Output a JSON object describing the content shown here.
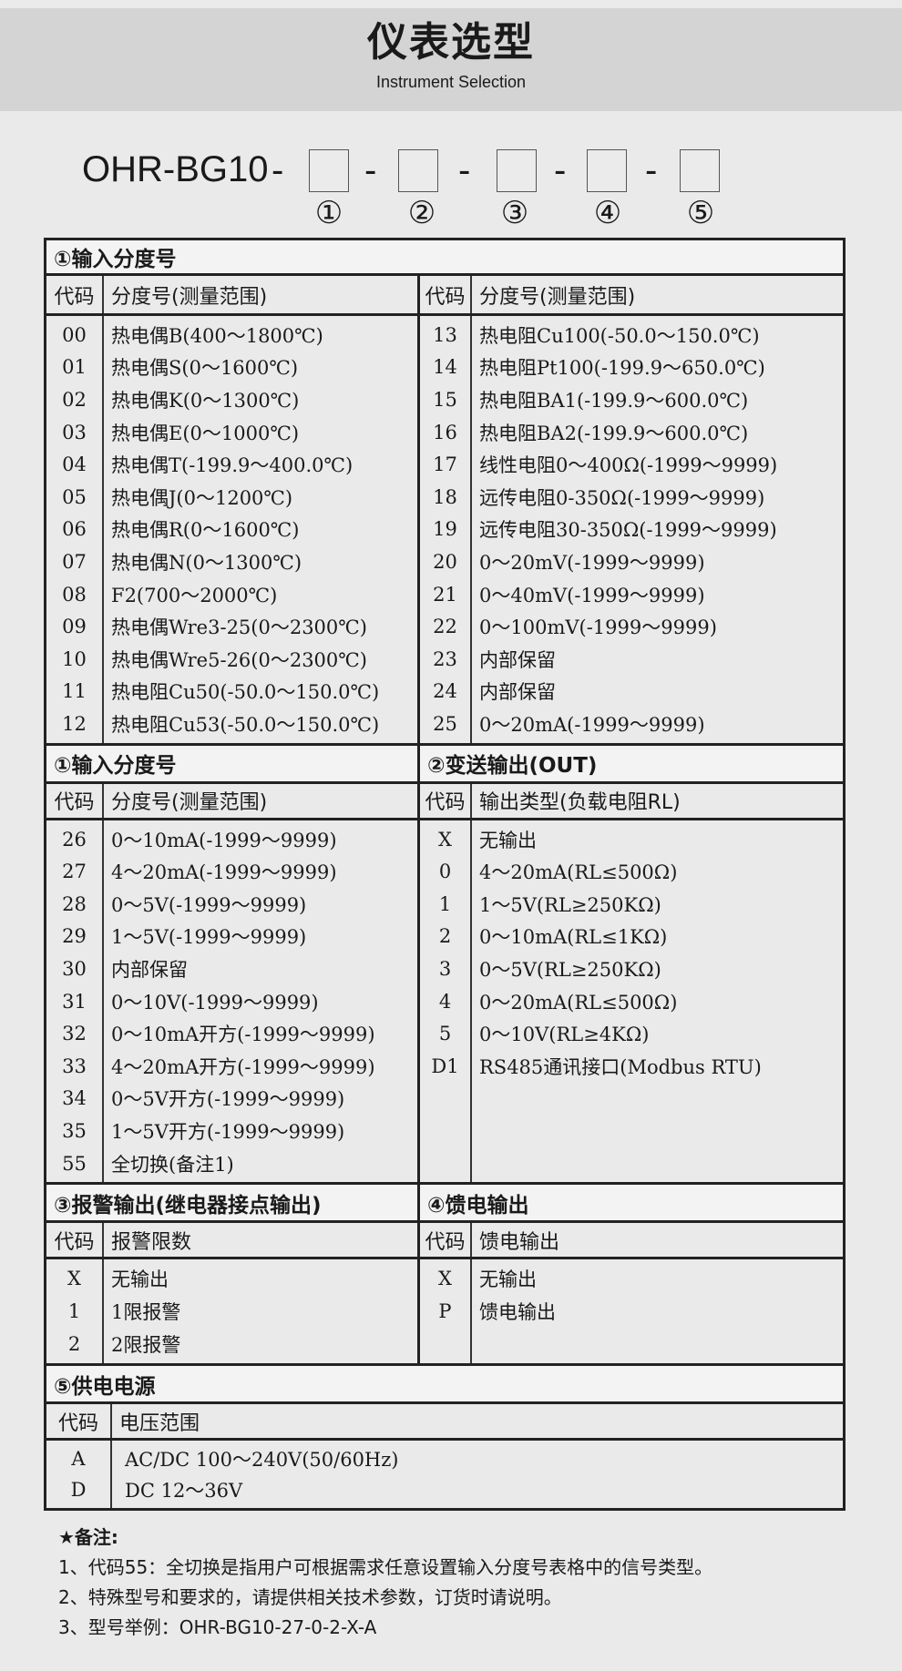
{
  "header": {
    "title": "仪表选型",
    "subtitle": "Instrument Selection"
  },
  "model": {
    "prefix": "OHR-BG10",
    "dash": "-",
    "slots": [
      "①",
      "②",
      "③",
      "④",
      "⑤"
    ]
  },
  "colors": {
    "background": "#ebeaeb",
    "band": "#d5d4d5",
    "border": "#222222"
  },
  "sections": {
    "input1": {
      "title": "①输入分度号",
      "code_header": "代码",
      "desc_header": "分度号(测量范围)",
      "left": [
        [
          "00",
          "热电偶B(400～1800℃)"
        ],
        [
          "01",
          "热电偶S(0～1600℃)"
        ],
        [
          "02",
          "热电偶K(0～1300℃)"
        ],
        [
          "03",
          "热电偶E(0～1000℃)"
        ],
        [
          "04",
          "热电偶T(-199.9～400.0℃)"
        ],
        [
          "05",
          "热电偶J(0～1200℃)"
        ],
        [
          "06",
          "热电偶R(0～1600℃)"
        ],
        [
          "07",
          "热电偶N(0～1300℃)"
        ],
        [
          "08",
          "F2(700～2000℃)"
        ],
        [
          "09",
          "热电偶Wre3-25(0～2300℃)"
        ],
        [
          "10",
          "热电偶Wre5-26(0～2300℃)"
        ],
        [
          "11",
          "热电阻Cu50(-50.0～150.0℃)"
        ],
        [
          "12",
          "热电阻Cu53(-50.0～150.0℃)"
        ]
      ],
      "right": [
        [
          "13",
          "热电阻Cu100(-50.0～150.0℃)"
        ],
        [
          "14",
          "热电阻Pt100(-199.9～650.0℃)"
        ],
        [
          "15",
          "热电阻BA1(-199.9～600.0℃)"
        ],
        [
          "16",
          "热电阻BA2(-199.9～600.0℃)"
        ],
        [
          "17",
          "线性电阻0～400Ω(-1999～9999)"
        ],
        [
          "18",
          "远传电阻0-350Ω(-1999～9999)"
        ],
        [
          "19",
          "远传电阻30-350Ω(-1999～9999)"
        ],
        [
          "20",
          "0～20mV(-1999～9999)"
        ],
        [
          "21",
          "0～40mV(-1999～9999)"
        ],
        [
          "22",
          "0～100mV(-1999～9999)"
        ],
        [
          "23",
          "内部保留"
        ],
        [
          "24",
          "内部保留"
        ],
        [
          "25",
          "0～20mA(-1999～9999)"
        ]
      ]
    },
    "input2": {
      "title": "①输入分度号",
      "code_header": "代码",
      "desc_header": "分度号(测量范围)",
      "rows": [
        [
          "26",
          "0～10mA(-1999～9999)"
        ],
        [
          "27",
          "4～20mA(-1999～9999)"
        ],
        [
          "28",
          "0～5V(-1999～9999)"
        ],
        [
          "29",
          "1～5V(-1999～9999)"
        ],
        [
          "30",
          "内部保留"
        ],
        [
          "31",
          "0～10V(-1999～9999)"
        ],
        [
          "32",
          "0～10mA开方(-1999～9999)"
        ],
        [
          "33",
          "4～20mA开方(-1999～9999)"
        ],
        [
          "34",
          "0～5V开方(-1999～9999)"
        ],
        [
          "35",
          "1～5V开方(-1999～9999)"
        ],
        [
          "55",
          "全切换(备注1)"
        ]
      ]
    },
    "output": {
      "title": "②变送输出(OUT)",
      "code_header": "代码",
      "desc_header": "输出类型(负载电阻RL)",
      "rows": [
        [
          "X",
          "无输出"
        ],
        [
          "0",
          "4～20mA(RL≤500Ω)"
        ],
        [
          "1",
          "1～5V(RL≥250KΩ)"
        ],
        [
          "2",
          "0～10mA(RL≤1KΩ)"
        ],
        [
          "3",
          "0～5V(RL≥250KΩ)"
        ],
        [
          "4",
          "0～20mA(RL≤500Ω)"
        ],
        [
          "5",
          "0～10V(RL≥4KΩ)"
        ],
        [
          "D1",
          "RS485通讯接口(Modbus RTU)"
        ]
      ]
    },
    "alarm": {
      "title": "③报警输出(继电器接点输出)",
      "code_header": "代码",
      "desc_header": "报警限数",
      "rows": [
        [
          "X",
          "无输出"
        ],
        [
          "1",
          "1限报警"
        ],
        [
          "2",
          "2限报警"
        ]
      ]
    },
    "feed": {
      "title": "④馈电输出",
      "code_header": "代码",
      "desc_header": "馈电输出",
      "rows": [
        [
          "X",
          "无输出"
        ],
        [
          "P",
          "馈电输出"
        ]
      ]
    },
    "power": {
      "title": "⑤供电电源",
      "code_header": "代码",
      "desc_header": "电压范围",
      "rows": [
        [
          "A",
          "AC/DC 100～240V(50/60Hz)"
        ],
        [
          "D",
          "DC 12～36V"
        ]
      ]
    }
  },
  "notes": {
    "title": "★备注:",
    "lines": [
      "1、代码55：全切换是指用户可根据需求任意设置输入分度号表格中的信号类型。",
      "2、特殊型号和要求的，请提供相关技术参数，订货时请说明。",
      "3、型号举例：OHR-BG10-27-0-2-X-A"
    ]
  }
}
